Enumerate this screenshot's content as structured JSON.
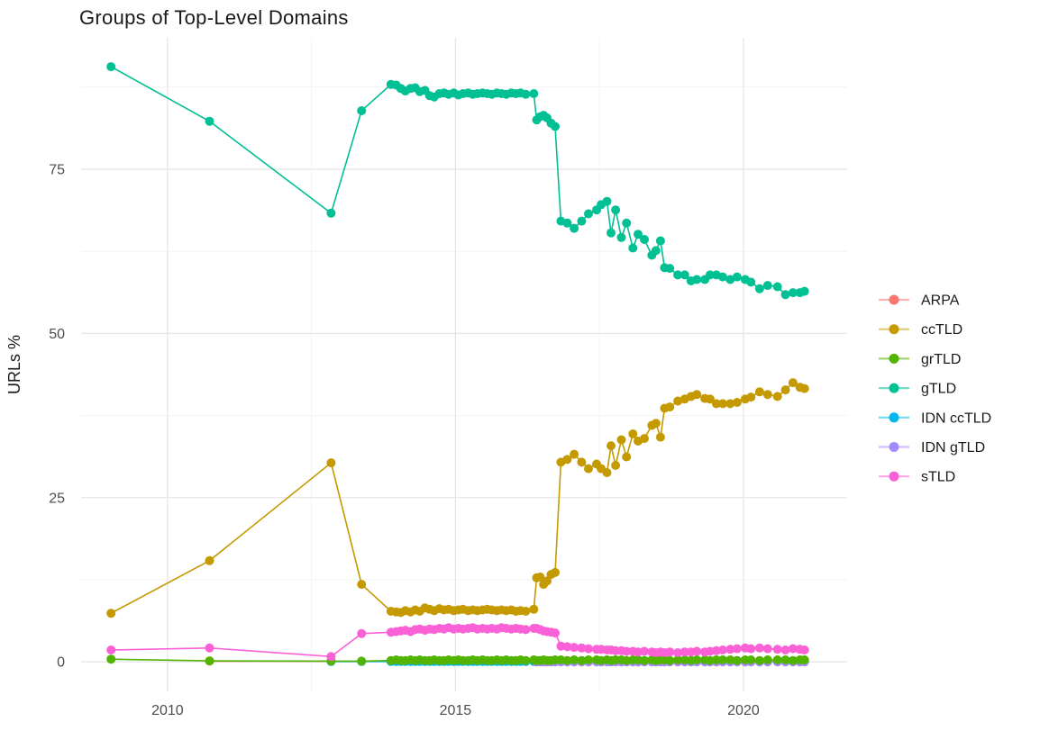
{
  "chart_data": {
    "type": "scatter",
    "title": "Groups of Top-Level Domains",
    "xlabel": "",
    "ylabel": "URLs %",
    "xlim": [
      2008.5,
      2021.8
    ],
    "ylim": [
      -4.5,
      95.0
    ],
    "x_major_ticks": [
      2010,
      2015,
      2020
    ],
    "x_minor_ticks": [
      2012.5,
      2017.5
    ],
    "y_major_ticks": [
      0,
      25,
      50,
      75
    ],
    "y_minor_ticks": [
      12.5,
      37.5,
      62.5,
      87.5
    ],
    "grid": true,
    "legend_position": "right",
    "x_shared": [
      2009.02,
      2010.73,
      2012.84,
      2013.37,
      2013.88,
      2013.97,
      2014.05,
      2014.13,
      2014.22,
      2014.3,
      2014.38,
      2014.47,
      2014.55,
      2014.63,
      2014.72,
      2014.8,
      2014.88,
      2014.97,
      2015.05,
      2015.13,
      2015.22,
      2015.3,
      2015.38,
      2015.47,
      2015.55,
      2015.63,
      2015.72,
      2015.8,
      2015.88,
      2015.97,
      2016.05,
      2016.13,
      2016.22,
      2016.36,
      2016.41,
      2016.47,
      2016.53,
      2016.59,
      2016.66,
      2016.73,
      2016.83,
      2016.94,
      2017.06,
      2017.19,
      2017.31,
      2017.45,
      2017.53,
      2017.63,
      2017.7,
      2017.78,
      2017.88,
      2017.97,
      2018.08,
      2018.17,
      2018.28,
      2018.41,
      2018.48,
      2018.56,
      2018.63,
      2018.72,
      2018.86,
      2018.98,
      2019.09,
      2019.19,
      2019.33,
      2019.42,
      2019.53,
      2019.64,
      2019.77,
      2019.89,
      2020.03,
      2020.13,
      2020.28,
      2020.42,
      2020.59,
      2020.73,
      2020.86,
      2020.98,
      2021.06
    ],
    "series": [
      {
        "name": "ARPA",
        "color": "#F8766D",
        "z": 1,
        "x": [
          2010.73,
          2012.84
        ],
        "y": [
          0.1,
          0.1
        ]
      },
      {
        "name": "ccTLD",
        "color": "#C49A00",
        "z": 2,
        "x_from_index": 0,
        "y": [
          7.4,
          15.4,
          30.3,
          11.8,
          7.7,
          7.6,
          7.5,
          7.8,
          7.6,
          7.9,
          7.7,
          8.2,
          8.0,
          7.8,
          8.1,
          7.9,
          8.0,
          7.8,
          7.9,
          8.0,
          7.8,
          7.9,
          7.8,
          7.9,
          8.0,
          7.9,
          7.8,
          7.9,
          7.8,
          7.9,
          7.7,
          7.8,
          7.7,
          8.0,
          12.8,
          12.9,
          11.8,
          12.3,
          13.3,
          13.6,
          30.4,
          30.8,
          31.6,
          30.4,
          29.4,
          30.1,
          29.4,
          28.8,
          32.9,
          29.9,
          33.8,
          31.2,
          34.7,
          33.6,
          34.0,
          36.0,
          36.3,
          34.2,
          38.6,
          38.8,
          39.7,
          40.0,
          40.4,
          40.7,
          40.1,
          40.0,
          39.3,
          39.3,
          39.3,
          39.5,
          40.0,
          40.3,
          41.1,
          40.7,
          40.4,
          41.4,
          42.5,
          41.8,
          41.6
        ]
      },
      {
        "name": "grTLD",
        "color": "#53B400",
        "z": 6,
        "x_from_index": 0,
        "y": [
          0.4,
          0.15,
          0.1,
          0.1,
          0.2,
          0.3,
          0.2,
          0.2,
          0.3,
          0.2,
          0.3,
          0.2,
          0.2,
          0.3,
          0.2,
          0.2,
          0.3,
          0.2,
          0.3,
          0.2,
          0.2,
          0.3,
          0.2,
          0.3,
          0.2,
          0.2,
          0.3,
          0.2,
          0.3,
          0.2,
          0.2,
          0.3,
          0.2,
          0.3,
          0.2,
          0.2,
          0.3,
          0.2,
          0.2,
          0.3,
          0.3,
          0.2,
          0.3,
          0.2,
          0.3,
          0.3,
          0.2,
          0.3,
          0.2,
          0.3,
          0.3,
          0.2,
          0.3,
          0.3,
          0.2,
          0.3,
          0.2,
          0.3,
          0.3,
          0.2,
          0.3,
          0.3,
          0.2,
          0.3,
          0.3,
          0.2,
          0.3,
          0.3,
          0.3,
          0.2,
          0.3,
          0.3,
          0.2,
          0.3,
          0.3,
          0.3,
          0.2,
          0.3,
          0.3
        ]
      },
      {
        "name": "gTLD",
        "color": "#00C094",
        "z": 3,
        "x_from_index": 0,
        "y": [
          90.6,
          82.3,
          68.3,
          83.9,
          87.9,
          87.8,
          87.3,
          86.9,
          87.3,
          87.4,
          86.8,
          87.0,
          86.2,
          86.0,
          86.5,
          86.6,
          86.4,
          86.6,
          86.3,
          86.5,
          86.6,
          86.4,
          86.5,
          86.6,
          86.5,
          86.4,
          86.6,
          86.5,
          86.4,
          86.6,
          86.5,
          86.6,
          86.4,
          86.5,
          82.5,
          83.0,
          83.2,
          82.8,
          82.0,
          81.5,
          67.1,
          66.8,
          66.0,
          67.1,
          68.2,
          68.8,
          69.6,
          70.1,
          65.3,
          68.8,
          64.6,
          66.8,
          63.0,
          65.1,
          64.3,
          61.9,
          62.6,
          64.1,
          60.0,
          59.9,
          58.9,
          58.9,
          58.0,
          58.2,
          58.2,
          58.9,
          58.9,
          58.6,
          58.2,
          58.6,
          58.2,
          57.8,
          56.8,
          57.3,
          57.1,
          55.9,
          56.2,
          56.2,
          56.4
        ]
      },
      {
        "name": "IDN ccTLD",
        "color": "#00B6EB",
        "z": 4,
        "x_from_index": 2,
        "y_const": 0.05
      },
      {
        "name": "IDN gTLD",
        "color": "#A58AFF",
        "z": 5,
        "x_from_index": 34,
        "y_const": 0.0
      },
      {
        "name": "sTLD",
        "color": "#FB61D7",
        "z": 7,
        "x_from_index": 0,
        "y": [
          1.8,
          2.1,
          0.8,
          4.3,
          4.5,
          4.6,
          4.7,
          4.8,
          4.6,
          4.9,
          5.0,
          4.8,
          5.0,
          4.9,
          5.1,
          5.0,
          5.2,
          5.0,
          5.1,
          5.0,
          5.1,
          5.2,
          5.0,
          5.1,
          5.0,
          5.1,
          5.0,
          5.2,
          5.1,
          5.0,
          5.1,
          5.0,
          4.9,
          5.1,
          5.1,
          4.9,
          4.7,
          4.6,
          4.5,
          4.4,
          2.4,
          2.3,
          2.2,
          2.1,
          2.0,
          1.9,
          1.9,
          1.8,
          1.8,
          1.7,
          1.7,
          1.6,
          1.6,
          1.5,
          1.6,
          1.5,
          1.4,
          1.5,
          1.4,
          1.5,
          1.4,
          1.5,
          1.5,
          1.6,
          1.5,
          1.6,
          1.7,
          1.8,
          1.9,
          2.0,
          2.1,
          2.0,
          2.1,
          2.0,
          1.9,
          1.8,
          2.0,
          1.9,
          1.8
        ]
      }
    ],
    "style": {
      "grid_major_color": "#E6E6E6",
      "grid_minor_color": "#F2F2F2",
      "tick_label_color": "#4d4d4d",
      "text_color": "#1a1a1a",
      "background": "#ffffff"
    }
  }
}
